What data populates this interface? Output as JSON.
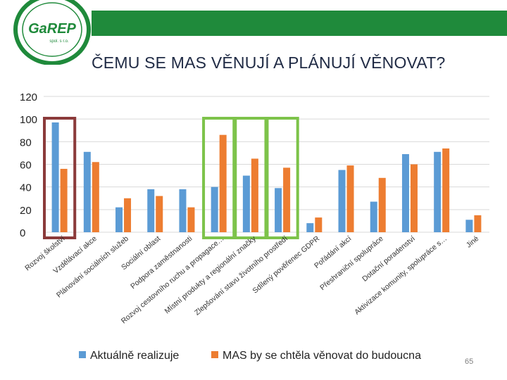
{
  "header": {
    "logo_text": "GaREP",
    "logo_subtext": "spol. s r.o.",
    "title": "ČEMU SE MAS VĚNUJÍ A PLÁNUJÍ VĚNOVAT?",
    "page_number": "65"
  },
  "colors": {
    "brand_green": "#1f8a3b",
    "series_current": "#5b9bd5",
    "series_future": "#ed7d31",
    "highlight_red": "#8b3a3a",
    "highlight_green": "#7dc34a"
  },
  "chart_data": {
    "type": "bar",
    "ylim": [
      0,
      120
    ],
    "yticks": [
      0,
      20,
      40,
      60,
      80,
      100,
      120
    ],
    "grid": true,
    "legend_position": "bottom",
    "categories": [
      "Rozvoj školství",
      "Vzdělávací akce",
      "Plánování sociálních služeb",
      "Sociální oblast",
      "Podpora zaměstnanosti",
      "Rozvoj cestovního ruchu a propagace…",
      "Místní produkty a regionální značky",
      "Zlepšování stavu životního prostředí",
      "Sdílený pověřenec GDPR",
      "Pořádání akcí",
      "Přeshraniční spolupráce",
      "Dotační poradenství",
      "Aktivizace komunity, spolupráce s…",
      "Jiné"
    ],
    "series": [
      {
        "name": "Aktuálně realizuje",
        "values": [
          97,
          71,
          22,
          38,
          38,
          40,
          50,
          39,
          8,
          55,
          27,
          69,
          71,
          11
        ]
      },
      {
        "name": "MAS by se chtěla věnovat do budoucna",
        "values": [
          56,
          62,
          30,
          32,
          22,
          86,
          65,
          57,
          13,
          59,
          48,
          60,
          74,
          15
        ]
      }
    ],
    "highlight_boxes": [
      {
        "color": "red",
        "categories": [
          0
        ]
      },
      {
        "color": "green",
        "categories": [
          5
        ]
      },
      {
        "color": "green",
        "categories": [
          6
        ]
      },
      {
        "color": "green",
        "categories": [
          7
        ]
      }
    ]
  }
}
